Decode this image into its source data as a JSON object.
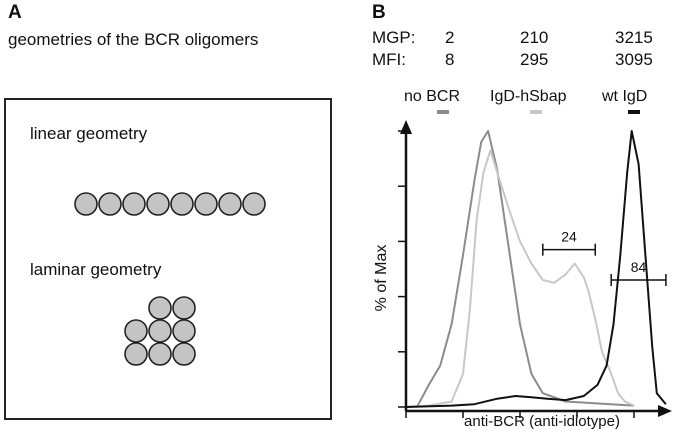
{
  "panel_a": {
    "letter": "A",
    "caption": "geometries of the BCR oligomers",
    "linear_label": "linear geometry",
    "laminar_label": "laminar geometry",
    "circle_fill": "#c4c4c4",
    "linear_count": 8,
    "laminar_rows": [
      2,
      3,
      3
    ]
  },
  "panel_b": {
    "letter": "B",
    "stats": {
      "mgp_label": "MGP:",
      "mfi_label": "MFI:",
      "mgp_values": [
        "2",
        "210",
        "3215"
      ],
      "mfi_values": [
        "8",
        "295",
        "3095"
      ]
    }
  },
  "chart_data": {
    "type": "line",
    "xlabel": "anti-BCR (anti-idiotype)",
    "ylabel": "% of Max",
    "series": [
      {
        "name": "no BCR",
        "color": "#8c8c8c",
        "points": [
          [
            0.0,
            0.0
          ],
          [
            0.05,
            0.3
          ],
          [
            0.1,
            8
          ],
          [
            0.15,
            15
          ],
          [
            0.2,
            30
          ],
          [
            0.25,
            55
          ],
          [
            0.3,
            82
          ],
          [
            0.33,
            96
          ],
          [
            0.36,
            100
          ],
          [
            0.4,
            86
          ],
          [
            0.45,
            58
          ],
          [
            0.5,
            30
          ],
          [
            0.55,
            12
          ],
          [
            0.6,
            5
          ],
          [
            0.7,
            2
          ],
          [
            1.0,
            0.5
          ]
        ]
      },
      {
        "name": "IgD-hSbap",
        "color": "#c8c8c8",
        "points": [
          [
            0.0,
            0.0
          ],
          [
            0.1,
            0.5
          ],
          [
            0.2,
            2
          ],
          [
            0.25,
            12
          ],
          [
            0.28,
            35
          ],
          [
            0.31,
            68
          ],
          [
            0.34,
            85
          ],
          [
            0.37,
            93
          ],
          [
            0.4,
            85
          ],
          [
            0.45,
            72
          ],
          [
            0.5,
            60
          ],
          [
            0.55,
            52
          ],
          [
            0.6,
            46
          ],
          [
            0.65,
            45
          ],
          [
            0.7,
            48
          ],
          [
            0.74,
            52
          ],
          [
            0.78,
            47
          ],
          [
            0.8,
            42
          ],
          [
            0.83,
            32
          ],
          [
            0.86,
            20
          ],
          [
            0.9,
            12
          ],
          [
            0.93,
            5
          ],
          [
            0.96,
            2
          ],
          [
            1.0,
            0.5
          ]
        ]
      },
      {
        "name": "wt IgD",
        "color": "#111111",
        "points": [
          [
            0.0,
            0.0
          ],
          [
            0.2,
            0.5
          ],
          [
            0.3,
            1
          ],
          [
            0.4,
            3
          ],
          [
            0.48,
            4
          ],
          [
            0.55,
            3.5
          ],
          [
            0.62,
            3
          ],
          [
            0.7,
            2.5
          ],
          [
            0.78,
            4
          ],
          [
            0.84,
            8
          ],
          [
            0.88,
            15
          ],
          [
            0.91,
            30
          ],
          [
            0.94,
            55
          ],
          [
            0.97,
            85
          ],
          [
            0.99,
            100
          ],
          [
            1.02,
            88
          ],
          [
            1.05,
            55
          ],
          [
            1.08,
            22
          ],
          [
            1.1,
            5
          ],
          [
            1.14,
            1
          ]
        ]
      }
    ],
    "gates": [
      {
        "label": "24",
        "x_start": 0.6,
        "x_end": 0.83,
        "y": 57
      },
      {
        "label": "84",
        "x_start": 0.9,
        "x_end": 1.14,
        "y": 46
      }
    ]
  }
}
